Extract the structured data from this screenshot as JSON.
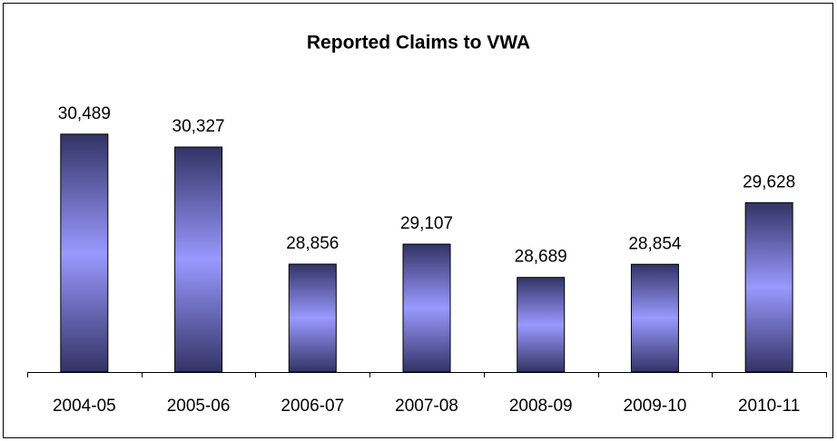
{
  "chart_data": {
    "type": "bar",
    "title": "Reported Claims to VWA",
    "categories": [
      "2004-05",
      "2005-06",
      "2006-07",
      "2007-08",
      "2008-09",
      "2009-10",
      "2010-11"
    ],
    "values": [
      30489,
      30327,
      28856,
      29107,
      28689,
      28854,
      29628
    ],
    "value_labels": [
      "30,489",
      "30,327",
      "28,856",
      "29,107",
      "28,689",
      "28,854",
      "29,628"
    ],
    "color": "#9999ff",
    "ylim": [
      27500,
      31000
    ]
  }
}
